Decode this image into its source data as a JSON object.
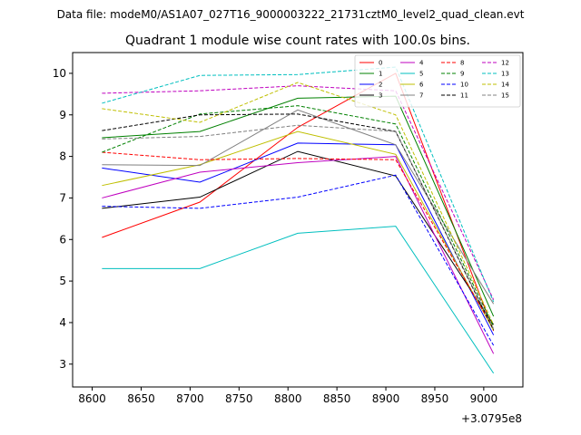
{
  "figure": {
    "suptitle": "Data file: modeM0/AS1A07_027T16_9000003222_21731cztM0_level2_quad_clean.evt"
  },
  "chart_data": {
    "type": "line",
    "title": "Quadrant 1 module wise count rates with 100.0s bins.",
    "xlabel": "",
    "ylabel": "",
    "x_offset_label": "+3.0795e8",
    "x": [
      8610,
      8710,
      8810,
      8910,
      9010
    ],
    "xlim": [
      8580,
      9040
    ],
    "ylim": [
      2.45,
      10.5
    ],
    "x_ticks": [
      8600,
      8650,
      8700,
      8750,
      8800,
      8850,
      8900,
      8950,
      9000
    ],
    "y_ticks": [
      3,
      4,
      5,
      6,
      7,
      8,
      9,
      10
    ],
    "grid": false,
    "legend": {
      "placement": "top-right",
      "columns": 4
    },
    "series": [
      {
        "name": "0",
        "color": "#ff0000",
        "dash": "solid",
        "values": [
          6.05,
          6.9,
          8.7,
          10.0,
          3.8
        ]
      },
      {
        "name": "1",
        "color": "#008000",
        "dash": "solid",
        "values": [
          8.45,
          8.6,
          9.4,
          9.45,
          4.15
        ]
      },
      {
        "name": "2",
        "color": "#0000ff",
        "dash": "solid",
        "values": [
          7.72,
          7.38,
          8.32,
          8.28,
          3.7
        ]
      },
      {
        "name": "3",
        "color": "#000000",
        "dash": "solid",
        "values": [
          6.75,
          7.02,
          8.12,
          7.53,
          3.95
        ]
      },
      {
        "name": "4",
        "color": "#bf00bf",
        "dash": "solid",
        "values": [
          7.0,
          7.62,
          7.85,
          8.0,
          3.25
        ]
      },
      {
        "name": "5",
        "color": "#00bfbf",
        "dash": "solid",
        "values": [
          5.3,
          5.3,
          6.15,
          6.32,
          2.78
        ]
      },
      {
        "name": "6",
        "color": "#bfbf00",
        "dash": "solid",
        "values": [
          7.3,
          7.8,
          8.6,
          8.05,
          3.82
        ]
      },
      {
        "name": "7",
        "color": "#808080",
        "dash": "solid",
        "values": [
          7.8,
          7.78,
          9.12,
          8.28,
          4.45
        ]
      },
      {
        "name": "8",
        "color": "#ff0000",
        "dash": "dashed",
        "values": [
          8.1,
          7.92,
          7.95,
          7.92,
          3.85
        ]
      },
      {
        "name": "9",
        "color": "#008000",
        "dash": "dashed",
        "values": [
          8.1,
          9.02,
          9.22,
          8.78,
          3.9
        ]
      },
      {
        "name": "10",
        "color": "#0000ff",
        "dash": "dashed",
        "values": [
          6.8,
          6.75,
          7.02,
          7.55,
          3.45
        ]
      },
      {
        "name": "11",
        "color": "#000000",
        "dash": "dashed",
        "values": [
          8.62,
          9.0,
          9.02,
          8.6,
          3.82
        ]
      },
      {
        "name": "12",
        "color": "#bf00bf",
        "dash": "dashed",
        "values": [
          9.52,
          9.58,
          9.7,
          9.58,
          4.55
        ]
      },
      {
        "name": "13",
        "color": "#00bfbf",
        "dash": "dashed",
        "values": [
          9.28,
          9.95,
          9.97,
          10.15,
          4.5
        ]
      },
      {
        "name": "14",
        "color": "#bfbf00",
        "dash": "dashed",
        "values": [
          9.15,
          8.82,
          9.78,
          9.0,
          3.95
        ]
      },
      {
        "name": "15",
        "color": "#808080",
        "dash": "dashed",
        "values": [
          8.42,
          8.48,
          8.75,
          8.6,
          3.85
        ]
      }
    ]
  }
}
